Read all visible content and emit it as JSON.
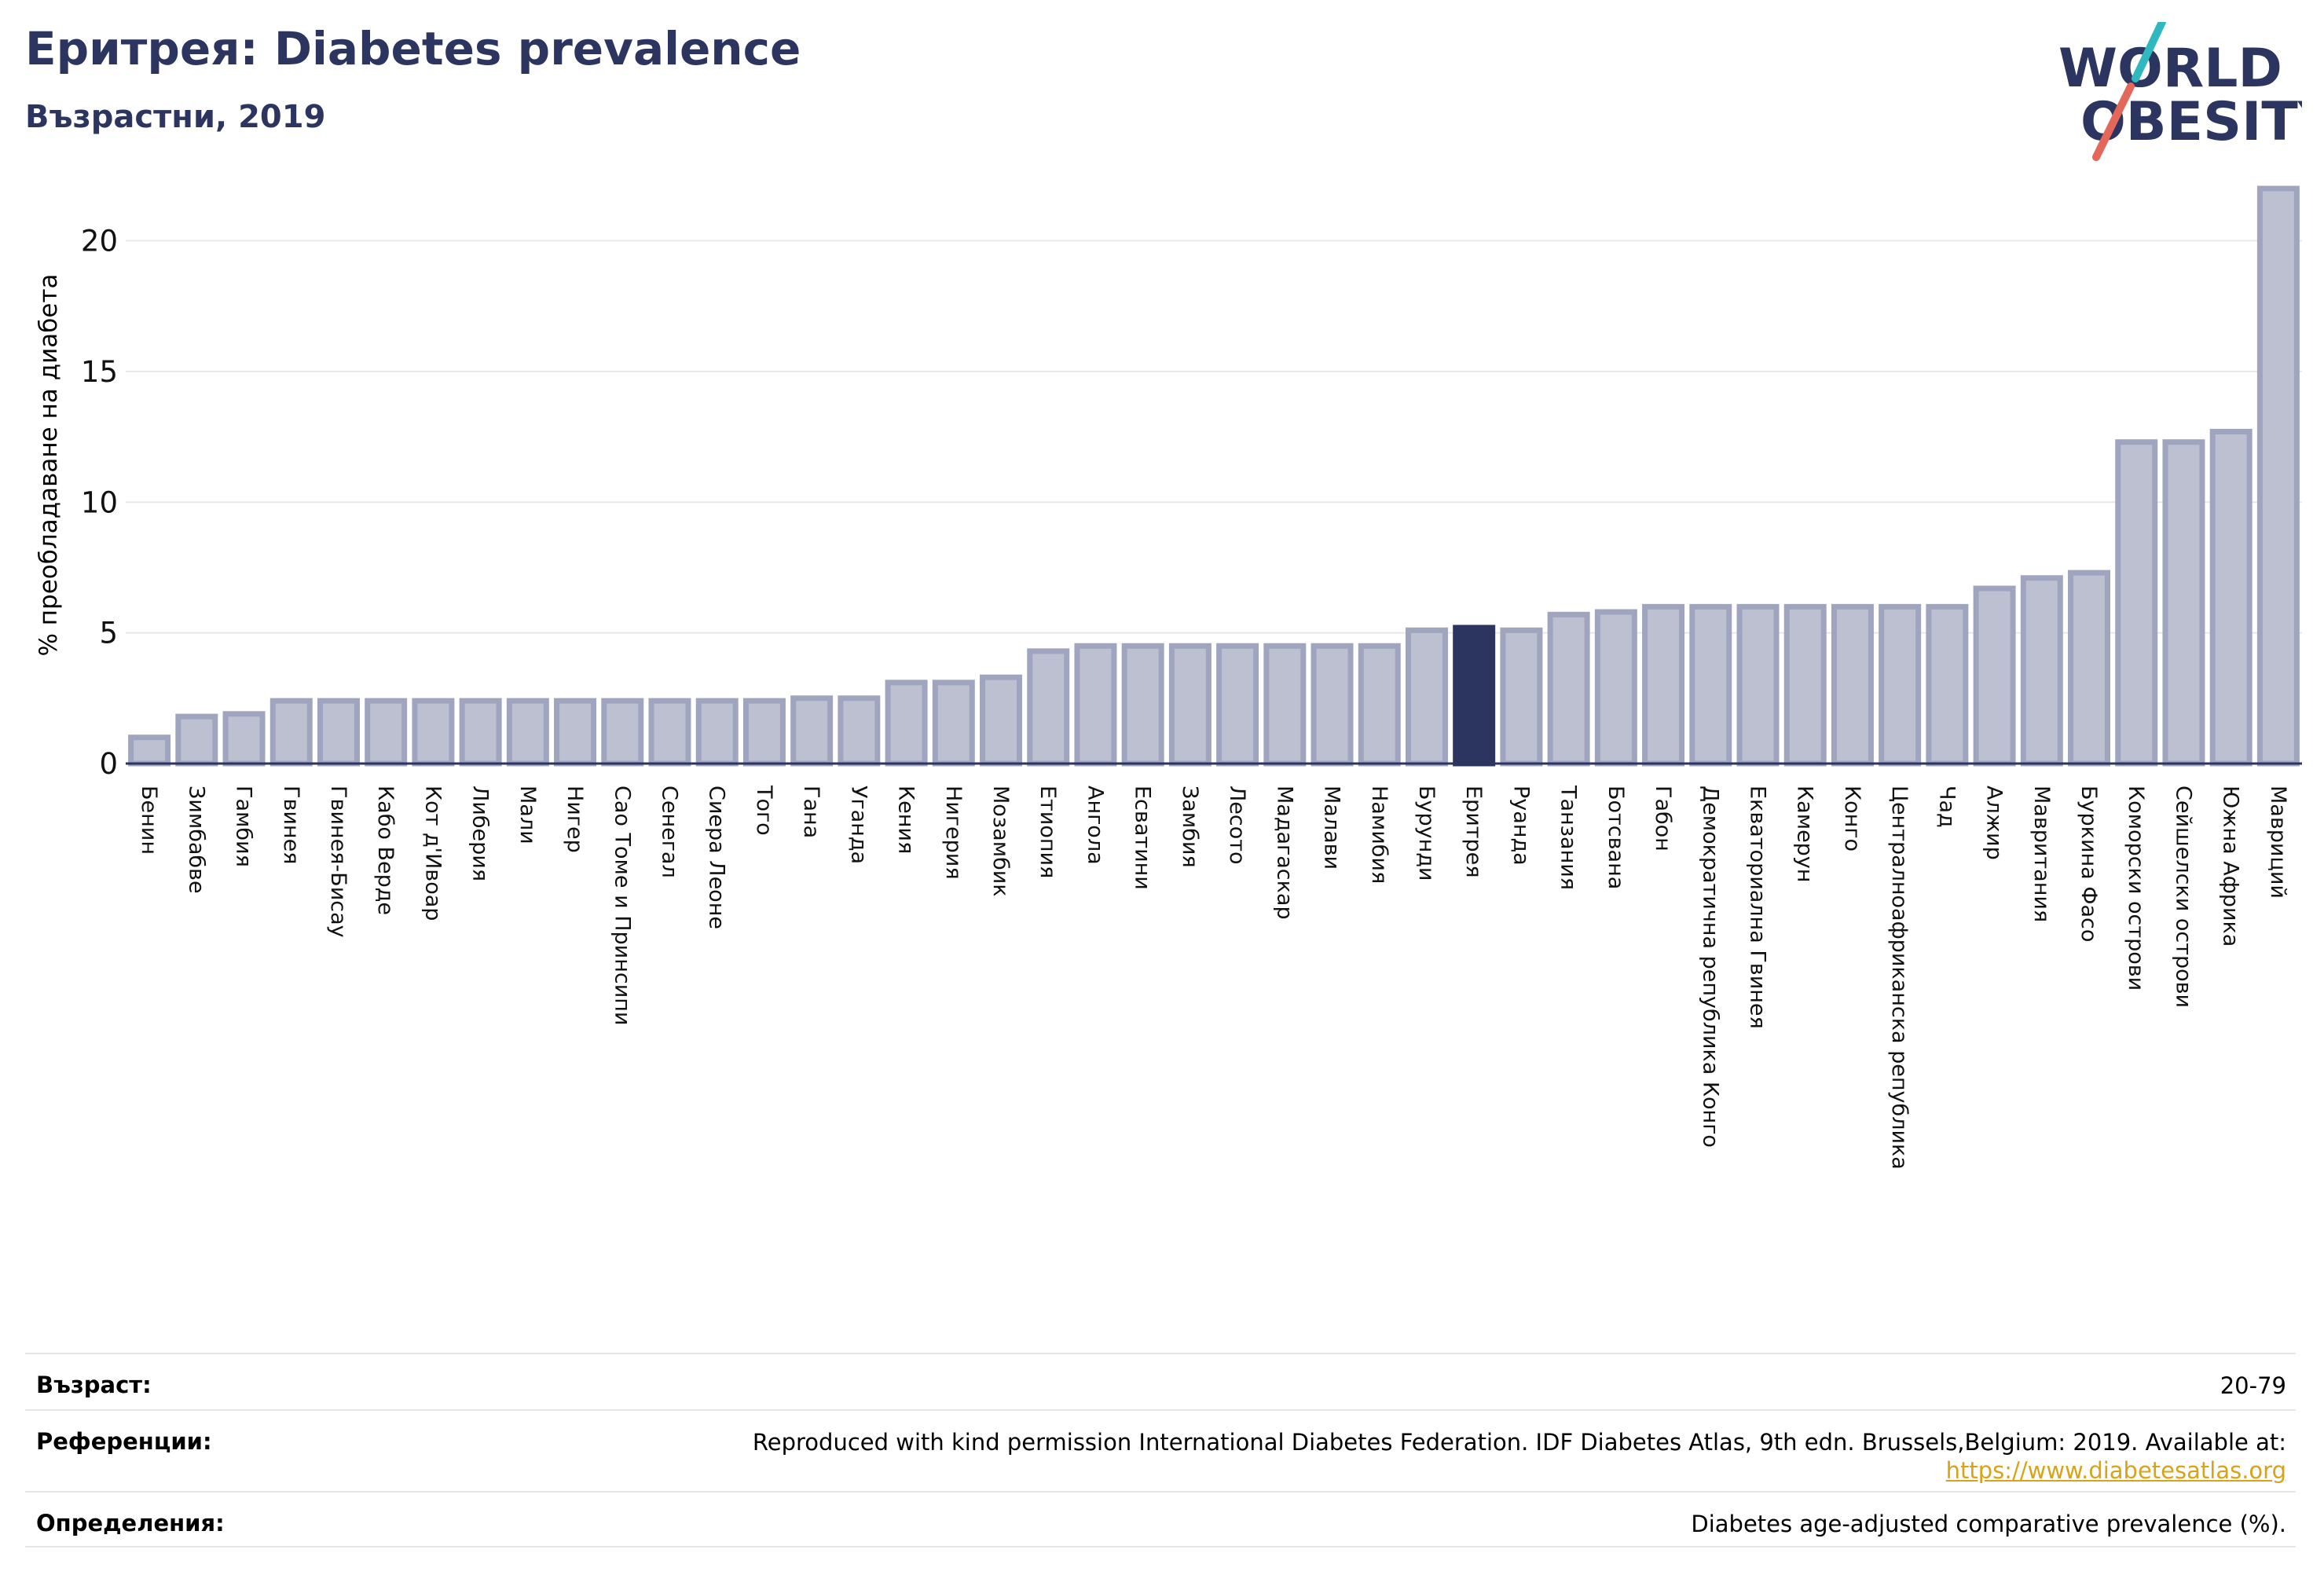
{
  "header": {
    "title": "Еритрея: Diabetes prevalence",
    "subtitle": "Възрастни, 2019"
  },
  "logo": {
    "line1": "WORLD",
    "line2": "OBESITY",
    "colors": {
      "text": "#2b3560",
      "slash_top": "#2fb8c0",
      "slash_bottom": "#e4685a"
    }
  },
  "chart_data": {
    "type": "bar",
    "ylabel": "% преобладаване на диабета",
    "ylim": [
      0,
      22
    ],
    "yticks": [
      0,
      5,
      10,
      15,
      20
    ],
    "grid": true,
    "highlight": "Еритрея",
    "colors": {
      "bar": "#bcc0d0",
      "bar_edge": "#9fa4bf",
      "highlight": "#2b3560"
    },
    "categories": [
      "Бенин",
      "Зимбабве",
      "Гамбия",
      "Гвинея",
      "Гвинея-Бисау",
      "Кабо Верде",
      "Кот д'Ивоар",
      "Либерия",
      "Мали",
      "Нигер",
      "Сао Томе и Принсипи",
      "Сенегал",
      "Сиера Леоне",
      "Того",
      "Гана",
      "Уганда",
      "Кения",
      "Нигерия",
      "Мозамбик",
      "Етиопия",
      "Ангола",
      "Есватини",
      "Замбия",
      "Лесото",
      "Мадагаскар",
      "Малави",
      "Намибия",
      "Бурунди",
      "Еритрея",
      "Руанда",
      "Танзания",
      "Ботсвана",
      "Габон",
      "Демократична република Конго",
      "Екваториална Гвинея",
      "Камерун",
      "Конго",
      "Централноафриканска република",
      "Чад",
      "Алжир",
      "Мавритания",
      "Буркина Фасо",
      "Коморски острови",
      "Сейшелски острови",
      "Южна Африка",
      "Мавриций"
    ],
    "values": [
      1.0,
      1.8,
      1.9,
      2.4,
      2.4,
      2.4,
      2.4,
      2.4,
      2.4,
      2.4,
      2.4,
      2.4,
      2.4,
      2.4,
      2.5,
      2.5,
      3.1,
      3.1,
      3.3,
      4.3,
      4.5,
      4.5,
      4.5,
      4.5,
      4.5,
      4.5,
      4.5,
      5.1,
      5.2,
      5.1,
      5.7,
      5.8,
      6.0,
      6.0,
      6.0,
      6.0,
      6.0,
      6.0,
      6.0,
      6.7,
      7.1,
      7.3,
      12.3,
      12.3,
      12.7,
      22.0
    ]
  },
  "info": {
    "age_label": "Възраст:",
    "age_value": "20-79",
    "refs_label": "Референции:",
    "refs_value": "Reproduced with kind permission International Diabetes Federation. IDF Diabetes Atlas, 9th edn. Brussels,Belgium: 2019. Available at:",
    "refs_link": "https://www.diabetesatlas.org",
    "defs_label": "Определения:",
    "defs_value": "Diabetes age-adjusted comparative prevalence (%)."
  }
}
